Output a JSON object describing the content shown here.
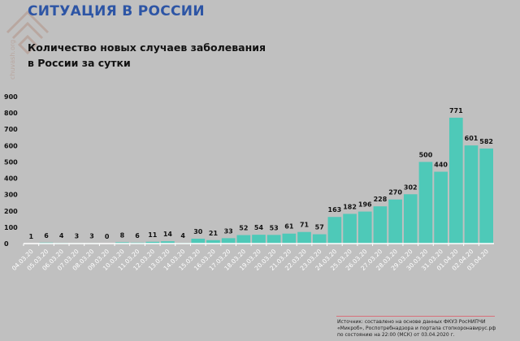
{
  "header": {
    "title": "СИТУАЦИЯ В РОССИИ",
    "subtitle_line1": "Количество новых случаев заболевания",
    "subtitle_line2": "в России за сутки",
    "logo_text": "chuvash.org"
  },
  "source": {
    "line1": "Источник: составлено на основе данных ФКУЗ РосНИПЧИ",
    "line2": "«Микроб», Роспотребнадзора и портала стопкоронавирус.рф",
    "line3": "по состоянию на 22:00 (МСК) от 03.04.2020 г."
  },
  "colors": {
    "bar": "#4ec9b8",
    "title": "#2d55a5",
    "axis": "#ffffff",
    "source_rule": "#d8707a"
  },
  "chart_data": {
    "type": "bar",
    "title": "Количество новых случаев заболевания в России за сутки",
    "xlabel": "",
    "ylabel": "",
    "ylim": [
      0,
      900
    ],
    "yticks": [
      0,
      100,
      200,
      300,
      400,
      500,
      600,
      700,
      800,
      900
    ],
    "grid": false,
    "categories": [
      "04.03.20",
      "05.03.20",
      "06.03.20",
      "07.03.20",
      "08.03.20",
      "09.03.20",
      "10.03.20",
      "11.03.20",
      "12.03.20",
      "13.03.20",
      "14.03.20",
      "15.03.20",
      "16.03.20",
      "17.03.20",
      "18.03.20",
      "19.03.20",
      "20.03.20",
      "21.03.20",
      "22.03.20",
      "23.03.20",
      "24.03.20",
      "25.03.20",
      "26.03.20",
      "27.03.20",
      "28.03.20",
      "29.03.20",
      "30.03.20",
      "31.03.20",
      "01.04.20",
      "02.04.20",
      "03.04.20"
    ],
    "values": [
      1,
      6,
      4,
      3,
      3,
      0,
      8,
      6,
      11,
      14,
      4,
      30,
      21,
      33,
      52,
      54,
      53,
      61,
      71,
      57,
      163,
      182,
      196,
      228,
      270,
      302,
      500,
      440,
      771,
      601,
      582
    ]
  }
}
